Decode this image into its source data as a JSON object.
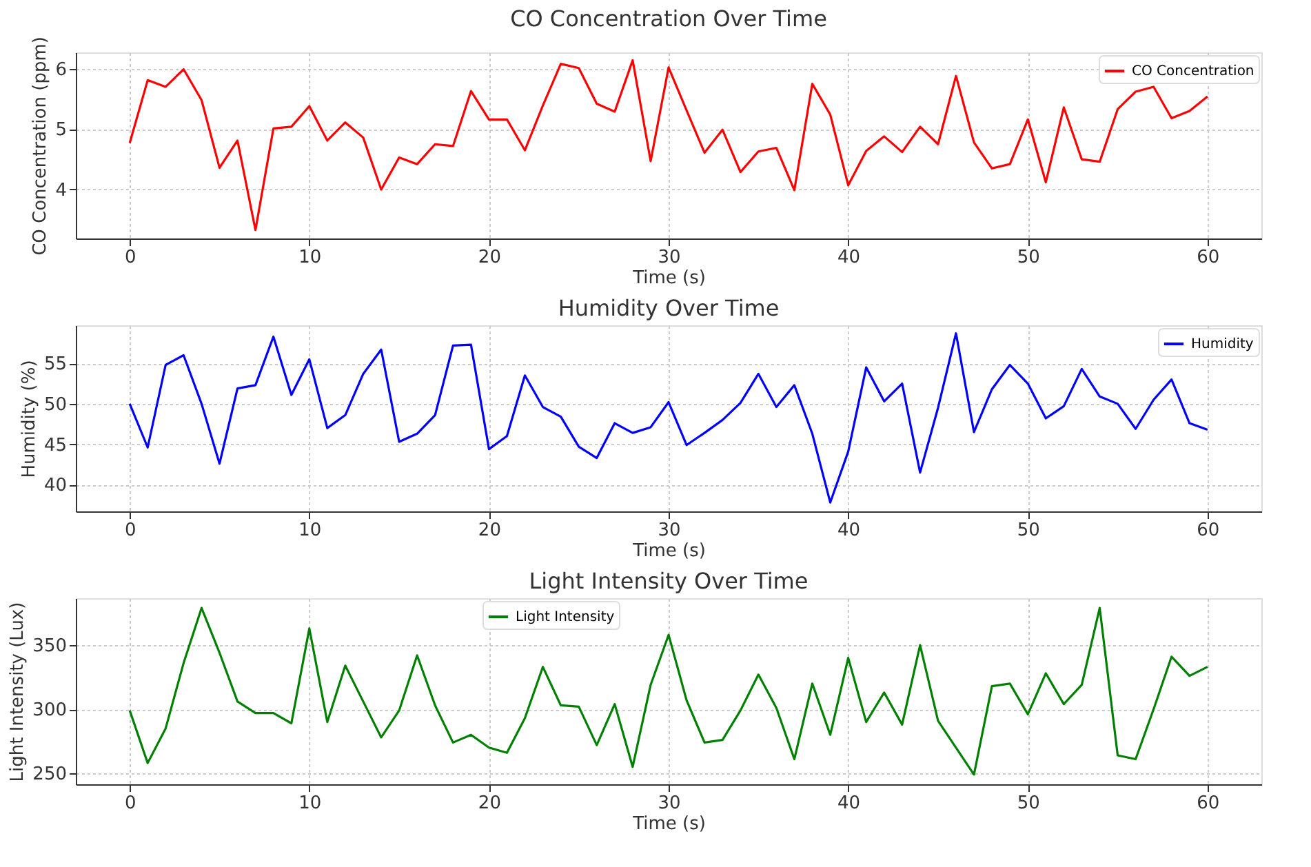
{
  "chart_data": [
    {
      "type": "line",
      "title": "CO Concentration Over Time",
      "xlabel": "Time (s)",
      "ylabel": "CO Concentration (ppm)",
      "x": [
        0,
        1,
        2,
        3,
        4,
        5,
        6,
        7,
        8,
        9,
        10,
        11,
        12,
        13,
        14,
        15,
        16,
        17,
        18,
        19,
        20,
        21,
        22,
        23,
        24,
        25,
        26,
        27,
        28,
        29,
        30,
        31,
        32,
        33,
        34,
        35,
        36,
        37,
        38,
        39,
        40,
        41,
        42,
        43,
        44,
        45,
        46,
        47,
        48,
        49,
        50,
        51,
        52,
        53,
        54,
        55,
        56,
        57,
        58,
        59,
        60
      ],
      "xlim": [
        -3,
        63
      ],
      "xticks": [
        0,
        10,
        20,
        30,
        40,
        50,
        60
      ],
      "ylim": [
        3.19,
        6.27
      ],
      "yticks": [
        4,
        5,
        6
      ],
      "grid": true,
      "legend": "top right",
      "marker": "none",
      "line_style": "solid",
      "series": [
        {
          "name": "CO Concentration",
          "color": "#ff0000",
          "values": [
            4.77,
            5.81,
            5.7,
            5.99,
            5.48,
            4.36,
            4.81,
            3.33,
            5.01,
            5.04,
            5.38,
            4.81,
            5.11,
            4.86,
            4.0,
            4.53,
            4.42,
            4.75,
            4.72,
            5.63,
            5.16,
            5.16,
            4.65,
            5.39,
            6.08,
            6.01,
            5.42,
            5.29,
            6.14,
            4.47,
            6.02,
            5.31,
            4.61,
            4.99,
            4.29,
            4.63,
            4.69,
            3.99,
            5.75,
            5.24,
            4.07,
            4.64,
            4.88,
            4.62,
            5.04,
            4.75,
            5.88,
            4.78,
            4.35,
            4.42,
            5.16,
            4.12,
            5.36,
            4.5,
            4.46,
            5.33,
            5.62,
            5.7,
            5.18,
            5.3,
            5.54
          ]
        }
      ]
    },
    {
      "type": "line",
      "title": "Humidity Over Time",
      "xlabel": "Time (s)",
      "ylabel": "Humidity (%)",
      "x": [
        0,
        1,
        2,
        3,
        4,
        5,
        6,
        7,
        8,
        9,
        10,
        11,
        12,
        13,
        14,
        15,
        16,
        17,
        18,
        19,
        20,
        21,
        22,
        23,
        24,
        25,
        26,
        27,
        28,
        29,
        30,
        31,
        32,
        33,
        34,
        35,
        36,
        37,
        38,
        39,
        40,
        41,
        42,
        43,
        44,
        45,
        46,
        47,
        48,
        49,
        50,
        51,
        52,
        53,
        54,
        55,
        56,
        57,
        58,
        59,
        60
      ],
      "xlim": [
        -3,
        63
      ],
      "xticks": [
        0,
        10,
        20,
        30,
        40,
        50,
        60
      ],
      "ylim": [
        36.7,
        59.7
      ],
      "yticks": [
        40,
        45,
        50,
        55
      ],
      "grid": true,
      "legend": "top right",
      "marker": "none",
      "line_style": "solid",
      "series": [
        {
          "name": "Humidity",
          "color": "#0000ff",
          "values": [
            50.0,
            44.6,
            54.8,
            56.0,
            50.0,
            42.6,
            51.9,
            52.3,
            58.3,
            51.1,
            55.5,
            47.0,
            48.6,
            53.7,
            56.7,
            45.3,
            46.3,
            48.6,
            57.2,
            57.3,
            44.4,
            46.0,
            53.5,
            49.6,
            48.4,
            44.7,
            43.3,
            47.6,
            46.4,
            47.1,
            50.2,
            44.9,
            46.4,
            48.0,
            50.1,
            53.7,
            49.6,
            52.3,
            46.3,
            37.8,
            44.1,
            54.5,
            50.3,
            52.5,
            41.5,
            49.5,
            58.7,
            46.5,
            51.8,
            54.8,
            52.5,
            48.2,
            49.7,
            54.3,
            50.9,
            50.0,
            46.9,
            50.5,
            53.0,
            47.6,
            46.8
          ]
        }
      ]
    },
    {
      "type": "line",
      "title": "Light Intensity Over Time",
      "xlabel": "Time (s)",
      "ylabel": "Light Intensity (Lux)",
      "x": [
        0,
        1,
        2,
        3,
        4,
        5,
        6,
        7,
        8,
        9,
        10,
        11,
        12,
        13,
        14,
        15,
        16,
        17,
        18,
        19,
        20,
        21,
        22,
        23,
        24,
        25,
        26,
        27,
        28,
        29,
        30,
        31,
        32,
        33,
        34,
        35,
        36,
        37,
        38,
        39,
        40,
        41,
        42,
        43,
        44,
        45,
        46,
        47,
        48,
        49,
        50,
        51,
        52,
        53,
        54,
        55,
        56,
        57,
        58,
        59,
        60
      ],
      "xlim": [
        -3,
        63
      ],
      "xticks": [
        0,
        10,
        20,
        30,
        40,
        50,
        60
      ],
      "ylim": [
        241.4,
        386.6
      ],
      "yticks": [
        250,
        300,
        350
      ],
      "grid": true,
      "legend": "top",
      "marker": "none",
      "line_style": "solid",
      "series": [
        {
          "name": "Light Intensity",
          "color": "#008000",
          "values": [
            299,
            258,
            285,
            336,
            379,
            344,
            306,
            297,
            297,
            289,
            363,
            290,
            334,
            306,
            278,
            299,
            342,
            303,
            274,
            280,
            270,
            266,
            293,
            333,
            303,
            302,
            272,
            304,
            255,
            319,
            358,
            307,
            274,
            276,
            299,
            327,
            301,
            261,
            320,
            280,
            340,
            290,
            313,
            288,
            350,
            291,
            270,
            249,
            318,
            320,
            296,
            328,
            304,
            319,
            379,
            264,
            261,
            300,
            341,
            326,
            333
          ]
        }
      ]
    }
  ]
}
